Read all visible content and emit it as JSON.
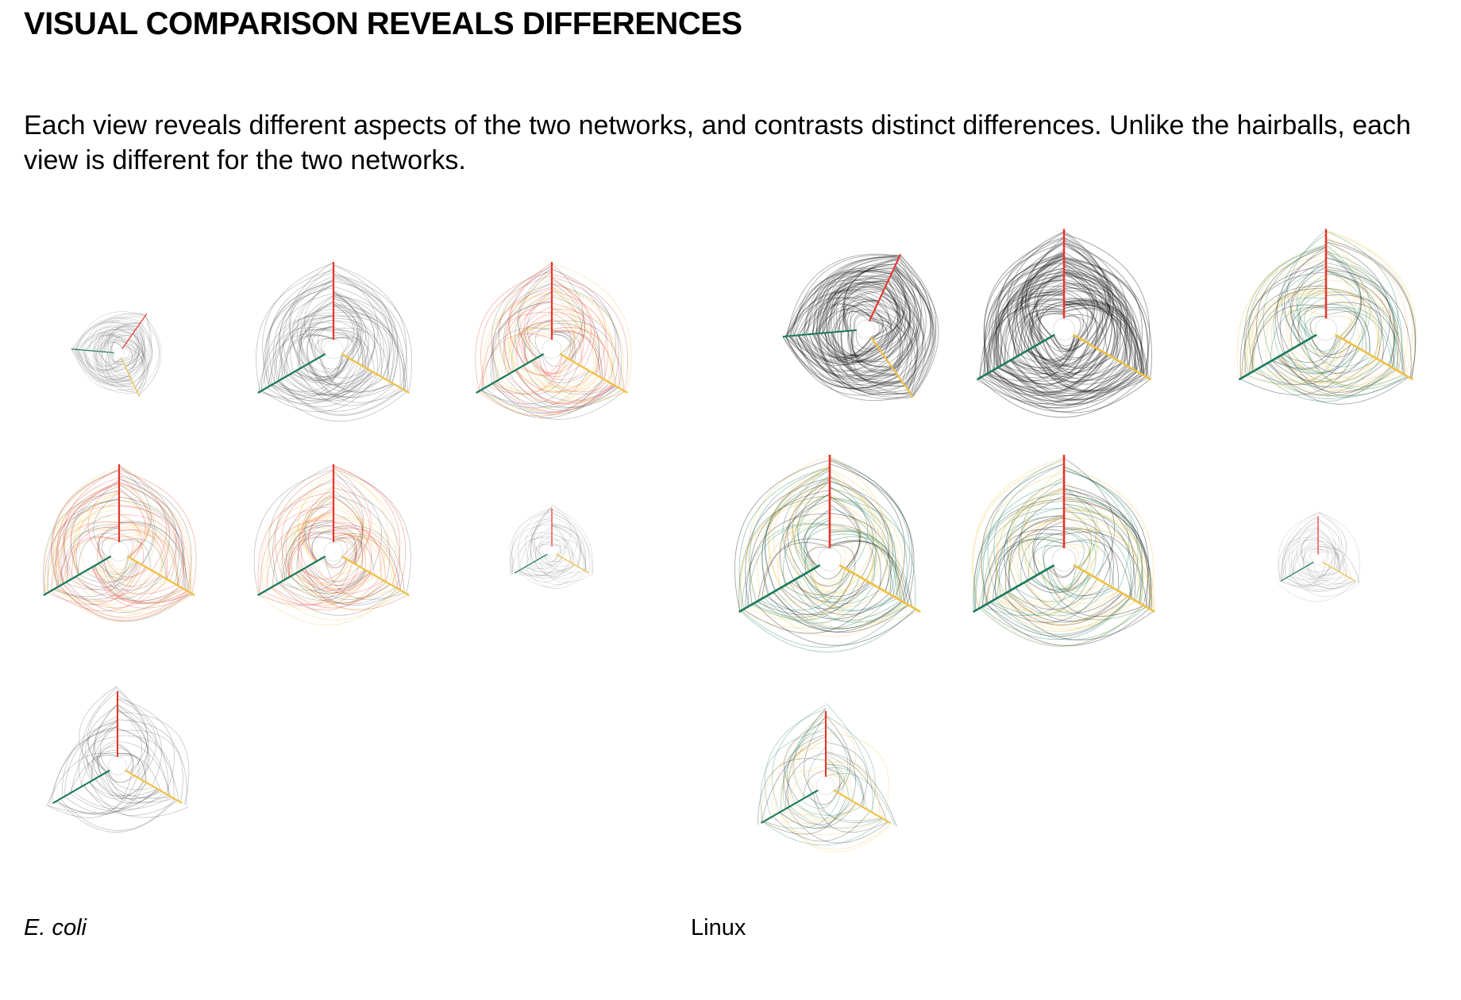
{
  "header": {
    "title": "VISUAL COMPARISON REVEALS DIFFERENCES",
    "subtitle": "Each view reveals different aspects of the two networks, and contrasts distinct differences. Unlike the hairballs, each view is different for the two networks."
  },
  "captions": {
    "left": "E. coli",
    "right": "Linux"
  },
  "colors": {
    "axis_red": "#e8342c",
    "axis_green": "#1a7a5a",
    "axis_yellow": "#f0c040",
    "edge_gray": "#555555",
    "edge_black": "#111111"
  },
  "panels": [
    {
      "group": "E. coli",
      "view": 1,
      "style": "sparse-gray-rotated",
      "icon": "hive-plot"
    },
    {
      "group": "E. coli",
      "view": 2,
      "style": "gray",
      "icon": "hive-plot"
    },
    {
      "group": "E. coli",
      "view": 3,
      "style": "red-yellow",
      "icon": "hive-plot"
    },
    {
      "group": "E. coli",
      "view": 4,
      "style": "red-yellow",
      "icon": "hive-plot"
    },
    {
      "group": "E. coli",
      "view": 5,
      "style": "red-yellow-split",
      "icon": "hive-plot"
    },
    {
      "group": "E. coli",
      "view": 6,
      "style": "small-loops",
      "icon": "hive-plot"
    },
    {
      "group": "E. coli",
      "view": 7,
      "style": "fan",
      "icon": "hive-plot"
    },
    {
      "group": "Linux",
      "view": 1,
      "style": "dense-black-rotated",
      "icon": "hive-plot"
    },
    {
      "group": "Linux",
      "view": 2,
      "style": "dense-black",
      "icon": "hive-plot"
    },
    {
      "group": "Linux",
      "view": 3,
      "style": "green-yellow",
      "icon": "hive-plot"
    },
    {
      "group": "Linux",
      "view": 4,
      "style": "green-yellow-double",
      "icon": "hive-plot"
    },
    {
      "group": "Linux",
      "view": 5,
      "style": "green-yellow-split",
      "icon": "hive-plot"
    },
    {
      "group": "Linux",
      "view": 6,
      "style": "small-loops",
      "icon": "hive-plot"
    },
    {
      "group": "Linux",
      "view": 7,
      "style": "mixed-loops",
      "icon": "hive-plot"
    }
  ]
}
